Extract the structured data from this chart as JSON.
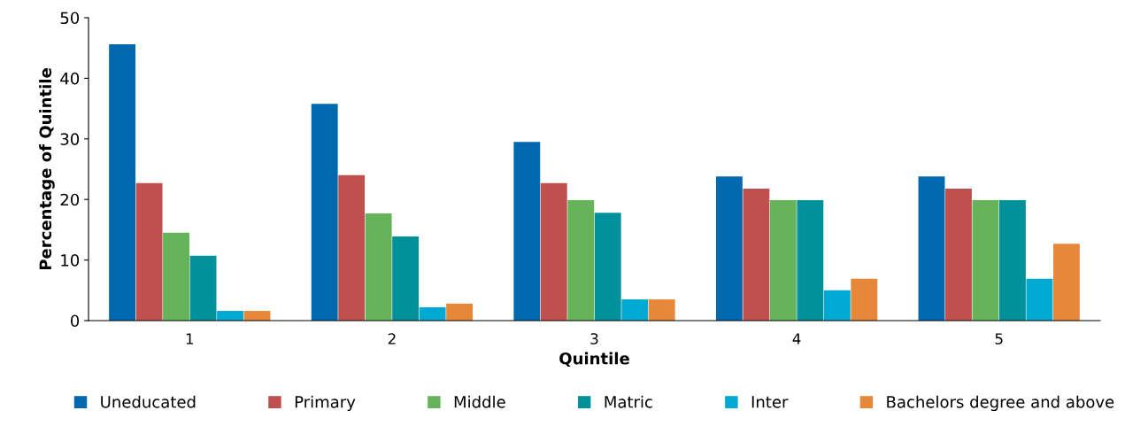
{
  "chart_data": {
    "type": "bar",
    "xlabel": "Quintile",
    "ylabel": "Percentage of Quintile",
    "categories": [
      "1",
      "2",
      "3",
      "4",
      "5"
    ],
    "series": [
      {
        "name": "Uneducated",
        "color": "#0068ad",
        "values": [
          45.6,
          35.8,
          29.5,
          23.8,
          23.8
        ]
      },
      {
        "name": "Primary",
        "color": "#c0504d",
        "values": [
          22.7,
          24.0,
          22.7,
          21.8,
          21.8
        ]
      },
      {
        "name": "Middle",
        "color": "#66b45a",
        "values": [
          14.5,
          17.7,
          19.9,
          19.9,
          19.9
        ]
      },
      {
        "name": "Matric",
        "color": "#00919a",
        "values": [
          10.7,
          13.9,
          17.8,
          19.9,
          19.9
        ]
      },
      {
        "name": "Inter",
        "color": "#00a9d1",
        "values": [
          1.6,
          2.2,
          3.5,
          5.0,
          6.9
        ]
      },
      {
        "name": "Bachelors degree and above",
        "color": "#e6873a",
        "values": [
          1.6,
          2.8,
          3.5,
          6.9,
          12.7
        ]
      }
    ],
    "ylim": [
      0,
      50
    ],
    "yticks": [
      0,
      10,
      20,
      30,
      40,
      50
    ],
    "grid": false,
    "legend": "bottom"
  }
}
